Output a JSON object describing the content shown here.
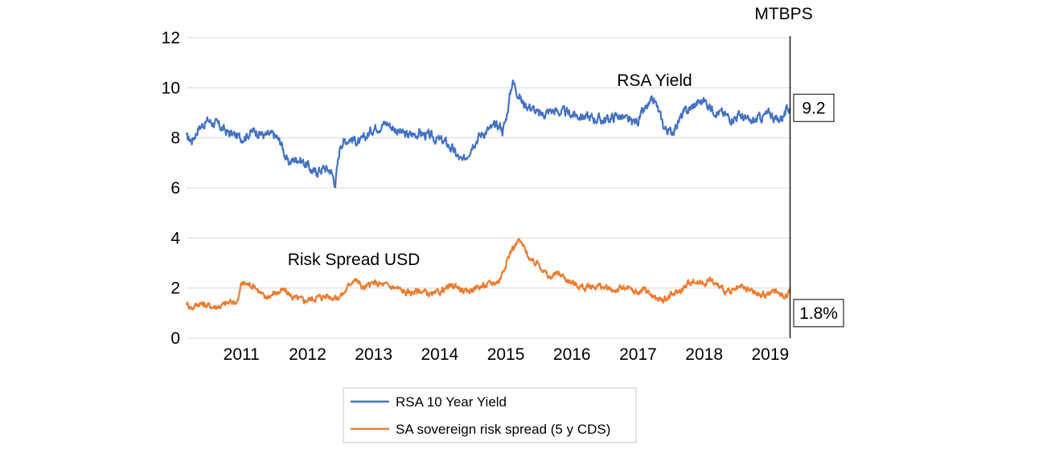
{
  "chart_data": {
    "type": "line",
    "title": "",
    "xlabel": "",
    "ylabel": "",
    "ylim": [
      0,
      12
    ],
    "y_ticks": [
      "0",
      "2",
      "4",
      "6",
      "8",
      "10",
      "12"
    ],
    "x_ticks": [
      "2011",
      "2012",
      "2013",
      "2014",
      "2015",
      "2016",
      "2017",
      "2018",
      "2019"
    ],
    "x_range": [
      2010.67,
      2019.83
    ],
    "grid": "horizontal",
    "series": [
      {
        "name": "RSA 10 Year Yield",
        "color": "#4472C4",
        "x": [
          2010.67,
          2010.75,
          2010.85,
          2011.0,
          2011.15,
          2011.3,
          2011.5,
          2011.7,
          2011.85,
          2012.0,
          2012.1,
          2012.2,
          2012.35,
          2012.5,
          2012.6,
          2012.75,
          2012.85,
          2012.92,
          2013.0,
          2013.15,
          2013.3,
          2013.5,
          2013.7,
          2013.85,
          2014.0,
          2014.2,
          2014.4,
          2014.6,
          2014.7,
          2014.85,
          2015.0,
          2015.15,
          2015.3,
          2015.42,
          2015.45,
          2015.5,
          2015.6,
          2015.75,
          2015.9,
          2016.0,
          2016.2,
          2016.4,
          2016.6,
          2016.8,
          2017.0,
          2017.2,
          2017.4,
          2017.5,
          2017.6,
          2017.75,
          2017.9,
          2018.0,
          2018.1,
          2018.2,
          2018.4,
          2018.5,
          2018.6,
          2018.75,
          2018.9,
          2019.05,
          2019.2,
          2019.35,
          2019.5,
          2019.6,
          2019.7,
          2019.8
        ],
        "values": [
          8.0,
          7.9,
          8.4,
          8.7,
          8.5,
          8.2,
          8.0,
          8.3,
          8.1,
          8.1,
          7.8,
          7.0,
          7.2,
          6.9,
          6.6,
          6.8,
          6.7,
          6.2,
          7.8,
          8.0,
          7.8,
          8.4,
          8.6,
          8.3,
          8.1,
          8.2,
          8.0,
          7.8,
          7.5,
          7.0,
          7.8,
          8.2,
          8.4,
          8.5,
          8.3,
          8.7,
          10.3,
          9.4,
          9.2,
          8.9,
          9.1,
          9.0,
          8.9,
          8.8,
          8.7,
          8.9,
          8.6,
          8.7,
          9.1,
          9.5,
          8.4,
          8.2,
          8.6,
          9.0,
          9.4,
          9.5,
          9.2,
          9.0,
          8.8,
          8.9,
          8.6,
          8.8,
          9.0,
          8.7,
          8.9,
          9.2
        ]
      },
      {
        "name": "SA sovereign risk spread (5 y CDS)",
        "color": "#ED7D31",
        "x": [
          2010.67,
          2010.75,
          2010.85,
          2011.0,
          2011.1,
          2011.2,
          2011.3,
          2011.45,
          2011.5,
          2011.7,
          2011.85,
          2012.0,
          2012.15,
          2012.3,
          2012.45,
          2012.6,
          2012.8,
          2012.95,
          2013.05,
          2013.2,
          2013.35,
          2013.5,
          2013.7,
          2013.85,
          2014.0,
          2014.2,
          2014.4,
          2014.6,
          2014.75,
          2014.9,
          2015.0,
          2015.2,
          2015.4,
          2015.5,
          2015.6,
          2015.7,
          2015.8,
          2015.9,
          2016.0,
          2016.15,
          2016.3,
          2016.5,
          2016.7,
          2016.9,
          2017.1,
          2017.3,
          2017.5,
          2017.6,
          2017.75,
          2017.9,
          2018.0,
          2018.2,
          2018.3,
          2018.45,
          2018.6,
          2018.75,
          2018.9,
          2019.05,
          2019.2,
          2019.35,
          2019.5,
          2019.6,
          2019.7,
          2019.8
        ],
        "values": [
          1.4,
          1.2,
          1.4,
          1.3,
          1.25,
          1.3,
          1.4,
          1.5,
          2.2,
          2.1,
          1.6,
          1.8,
          1.9,
          1.6,
          1.5,
          1.6,
          1.7,
          1.6,
          1.8,
          2.4,
          2.0,
          2.2,
          2.1,
          2.0,
          1.8,
          1.9,
          1.7,
          2.0,
          2.1,
          1.8,
          2.0,
          2.1,
          2.3,
          3.0,
          3.6,
          3.9,
          3.5,
          3.0,
          3.0,
          2.4,
          2.6,
          2.2,
          2.0,
          2.1,
          1.9,
          2.0,
          1.8,
          2.0,
          1.6,
          1.5,
          1.7,
          2.0,
          2.3,
          2.2,
          2.3,
          2.0,
          1.8,
          2.0,
          1.9,
          1.7,
          1.8,
          1.9,
          1.7,
          1.8
        ]
      }
    ],
    "vline": {
      "x": 2019.8,
      "label": "MTBPS"
    },
    "annotations": [
      {
        "text": "RSA Yield",
        "x": 2017.75,
        "y": 10.3
      },
      {
        "text": "Risk Spread USD",
        "x": 2013.2,
        "y": 3.15
      }
    ],
    "end_labels": [
      {
        "text": "9.2",
        "series": 0
      },
      {
        "text": "1.8%",
        "series": 1
      }
    ]
  },
  "legend": {
    "position": "bottom-center",
    "items": [
      {
        "label": "RSA 10 Year Yield",
        "color": "#4472C4"
      },
      {
        "label": "SA sovereign risk spread (5 y CDS)",
        "color": "#ED7D31"
      }
    ]
  }
}
